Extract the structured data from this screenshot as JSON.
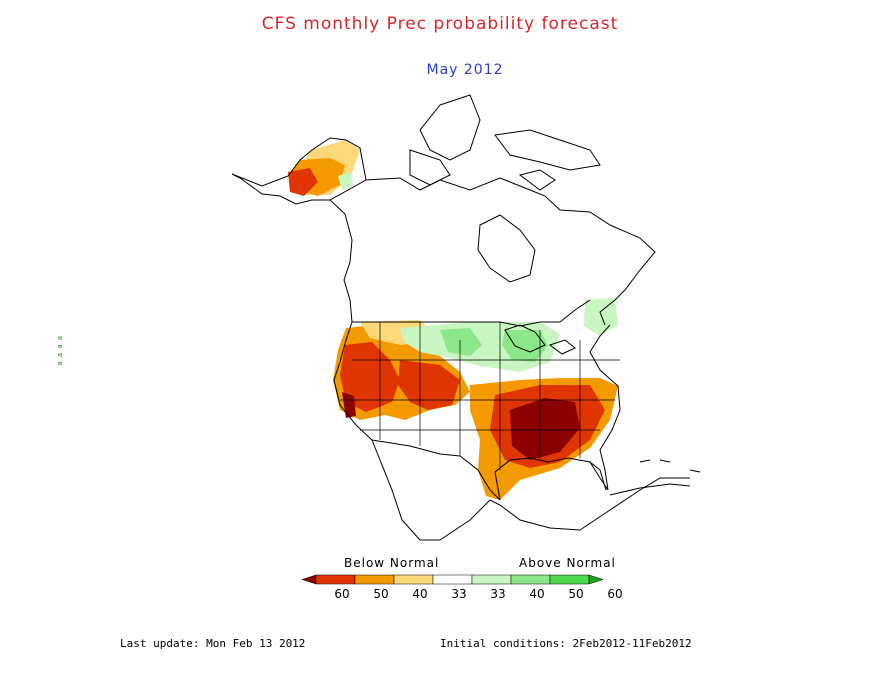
{
  "title": "CFS monthly Prec probability forecast",
  "subtitle": "May 2012",
  "legend": {
    "below_label": "Below Normal",
    "above_label": "Above Normal",
    "tick_labels": [
      "60",
      "50",
      "40",
      "33",
      "33",
      "40",
      "50",
      "60"
    ],
    "colors": [
      "#8b0000",
      "#e03500",
      "#f39a00",
      "#fbd97a",
      "#ffffff",
      "#c8f5c0",
      "#8ce68a",
      "#4ed84e",
      "#1aa51a"
    ]
  },
  "footer": {
    "last_update": "Last update: Mon Feb 13 2012",
    "initial_conditions": "Initial conditions: 2Feb2012-11Feb2012"
  },
  "side_mark": "a a a a"
}
